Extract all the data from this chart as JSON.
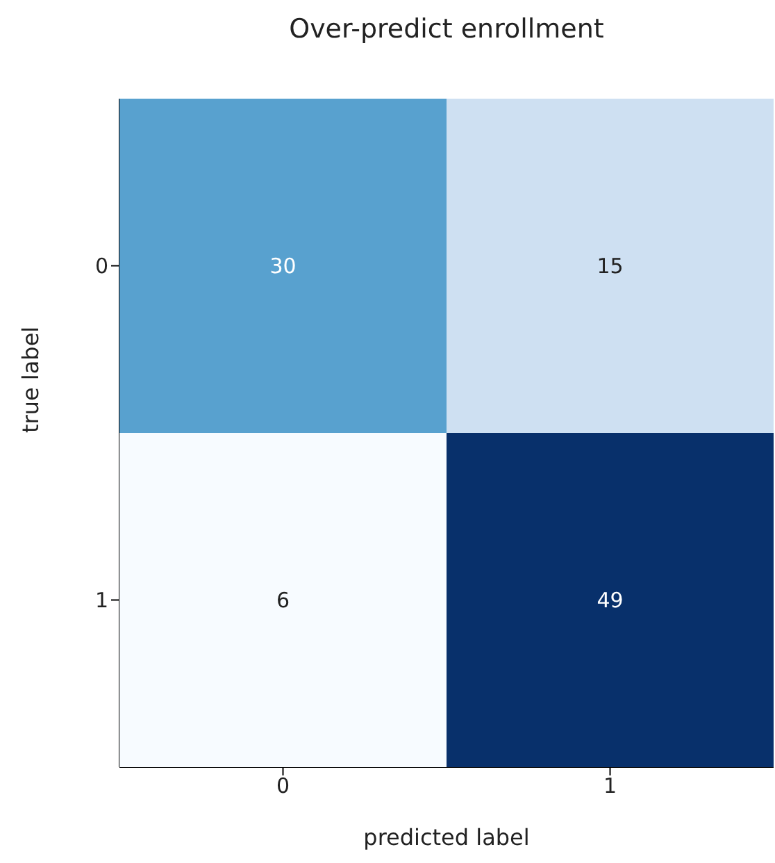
{
  "chart_data": {
    "type": "heatmap",
    "title": "Over-predict enrollment",
    "xlabel": "predicted label",
    "ylabel": "true label",
    "data_labels": true,
    "categories": [
      "0",
      "1"
    ],
    "y_categories": [
      "0",
      "1"
    ],
    "cells": [
      [
        30,
        15
      ],
      [
        6,
        49
      ]
    ]
  }
}
